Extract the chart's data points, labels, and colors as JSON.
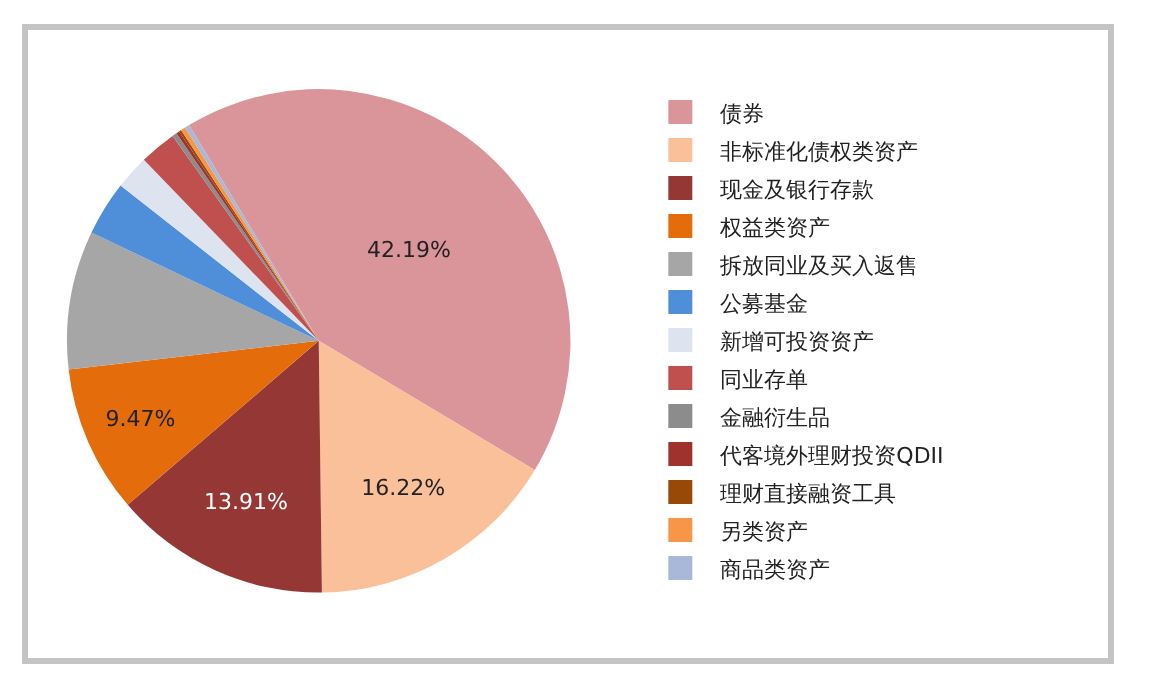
{
  "chart_data": {
    "type": "pie",
    "categories": [
      "债券",
      "非标准化债权类资产",
      "现金及银行存款",
      "权益类资产",
      "拆放同业及买入返售",
      "公募基金",
      "新增可投资资产",
      "同业存单",
      "金融衍生品",
      "代客境外理财投资QDII",
      "理财直接融资工具",
      "另类资产",
      "商品类资产"
    ],
    "values": [
      42.19,
      16.22,
      13.91,
      9.47,
      8.9,
      3.5,
      2.2,
      2.36,
      0.3,
      0.2,
      0.15,
      0.3,
      0.3
    ],
    "value_labels": [
      "42.19%",
      "16.22%",
      "13.91%",
      "9.47%",
      null,
      null,
      null,
      null,
      null,
      null,
      null,
      null,
      null
    ],
    "colors": [
      "#d9959a",
      "#f9c09a",
      "#953735",
      "#e46c0a",
      "#a6a6a6",
      "#4f8fd9",
      "#dde4f0",
      "#c0504d",
      "#8c8c8c",
      "#a0322d",
      "#984807",
      "#f79646",
      "#a9b8d8"
    ],
    "legend": "right"
  }
}
